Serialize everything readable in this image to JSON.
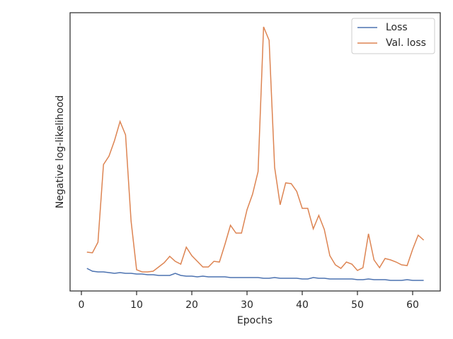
{
  "chart_data": {
    "type": "line",
    "xlabel": "Epochs",
    "ylabel": "Negative log-likelihood",
    "x": [
      1,
      2,
      3,
      4,
      5,
      6,
      7,
      8,
      9,
      10,
      11,
      12,
      13,
      14,
      15,
      16,
      17,
      18,
      19,
      20,
      21,
      22,
      23,
      24,
      25,
      26,
      27,
      28,
      29,
      30,
      31,
      32,
      33,
      34,
      35,
      36,
      37,
      38,
      39,
      40,
      41,
      42,
      43,
      44,
      45,
      46,
      47,
      48,
      49,
      50,
      51,
      52,
      53,
      54,
      55,
      56,
      57,
      58,
      59,
      60,
      61,
      62
    ],
    "series": [
      {
        "name": "Loss",
        "color": "#4c72b0",
        "values": [
          32,
          28,
          27,
          27,
          26,
          25,
          26,
          25,
          25,
          24,
          24,
          23,
          23,
          22,
          22,
          22,
          25,
          22,
          21,
          21,
          20,
          21,
          20,
          20,
          20,
          20,
          19,
          19,
          19,
          19,
          19,
          19,
          18,
          18,
          19,
          18,
          18,
          18,
          18,
          17,
          17,
          19,
          18,
          18,
          17,
          17,
          17,
          17,
          17,
          16,
          16,
          17,
          16,
          16,
          16,
          15,
          15,
          15,
          16,
          15,
          15,
          15
        ]
      },
      {
        "name": "Val. loss",
        "color": "#dd8452",
        "values": [
          55,
          54,
          69,
          179,
          191,
          213,
          240,
          221,
          99,
          30,
          27,
          27,
          28,
          34,
          40,
          49,
          42,
          38,
          62,
          50,
          42,
          34,
          34,
          42,
          41,
          66,
          93,
          82,
          82,
          115,
          137,
          169,
          374,
          355,
          175,
          122,
          153,
          152,
          141,
          117,
          117,
          88,
          107,
          87,
          50,
          37,
          32,
          41,
          38,
          29,
          33,
          81,
          44,
          33,
          46,
          44,
          41,
          37,
          36,
          59,
          79,
          72
        ]
      }
    ],
    "xlim": [
      -2.05,
      65.0
    ],
    "xticks": [
      0,
      10,
      20,
      30,
      40,
      50,
      60
    ],
    "ylim": [
      0,
      394
    ],
    "legend": "upper right"
  }
}
